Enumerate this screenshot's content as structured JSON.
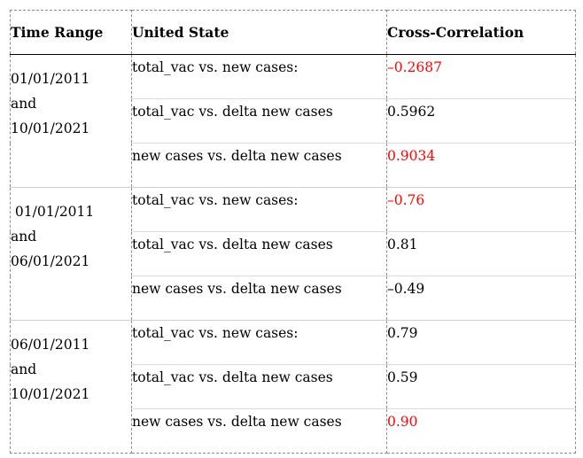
{
  "headers": [
    "Time Range",
    "United State",
    "Cross-Correlation"
  ],
  "groups": [
    {
      "range": [
        "01/01/2011",
        "and",
        "10/01/2021"
      ],
      "rows": [
        {
          "label": "total_vac vs. new cases:",
          "value": "–0.2687",
          "color": "#ff0000"
        },
        {
          "label": "total_vac vs. delta new cases",
          "value": "0.5962",
          "color": "#000000"
        },
        {
          "label": "new cases vs. delta new cases",
          "value": "0.9034",
          "color": "#ff0000"
        }
      ]
    },
    {
      "range": [
        " 01/01/2011",
        "and",
        "06/01/2021"
      ],
      "rows": [
        {
          "label": "total_vac vs. new cases:",
          "value": "–0.76",
          "color": "#ff0000"
        },
        {
          "label": "total_vac vs. delta new cases",
          "value": "0.81",
          "color": "#000000"
        },
        {
          "label": "new cases vs. delta new cases",
          "value": "–0.49",
          "color": "#000000"
        }
      ]
    },
    {
      "range": [
        "06/01/2011",
        "and",
        "10/01/2021"
      ],
      "rows": [
        {
          "label": "total_vac vs. new cases:",
          "value": "0.79",
          "color": "#000000"
        },
        {
          "label": "total_vac vs. delta new cases",
          "value": "0.59",
          "color": "#000000"
        },
        {
          "label": "new cases vs. delta new cases",
          "value": "0.90",
          "color": "#ff0000"
        }
      ]
    }
  ]
}
